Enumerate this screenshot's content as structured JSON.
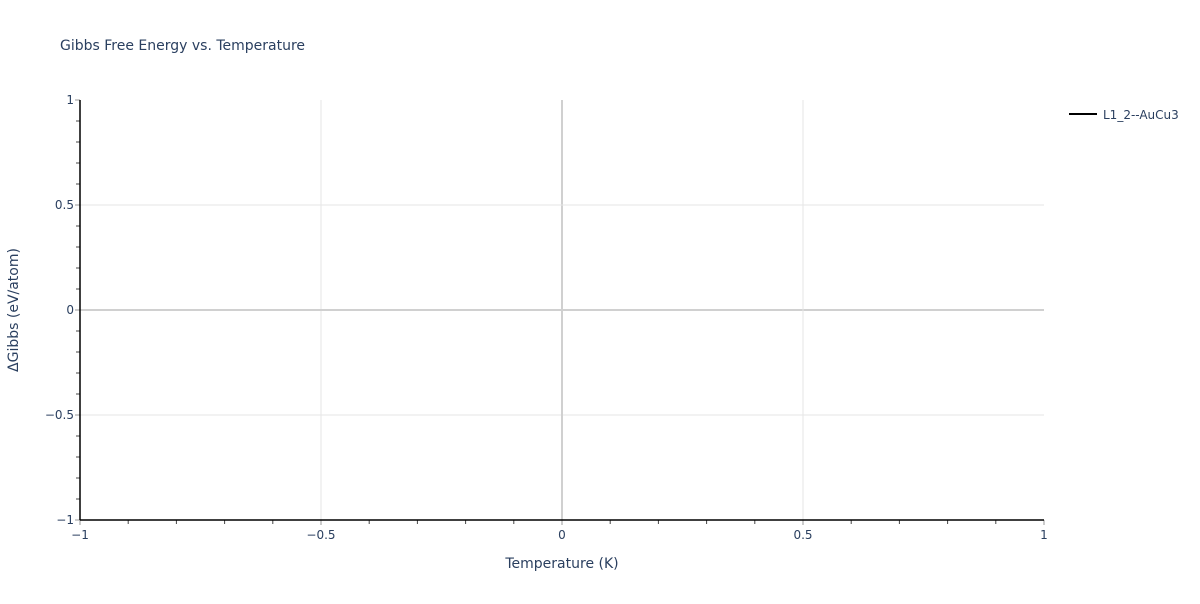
{
  "chart_data": {
    "type": "line",
    "title": "Gibbs Free Energy vs. Temperature",
    "xlabel": "Temperature (K)",
    "ylabel": "ΔGibbs (eV/atom)",
    "xlim": [
      -1,
      1
    ],
    "ylim": [
      -1,
      1
    ],
    "x_ticks": [
      "−1",
      "−0.5",
      "0",
      "0.5",
      "1"
    ],
    "y_ticks": [
      "−1",
      "−0.5",
      "0",
      "0.5",
      "1"
    ],
    "grid": true,
    "legend_position": "top-right",
    "series": [
      {
        "name": "L1_2--AuCu3",
        "color": "#000000",
        "x": [],
        "y": []
      }
    ]
  }
}
